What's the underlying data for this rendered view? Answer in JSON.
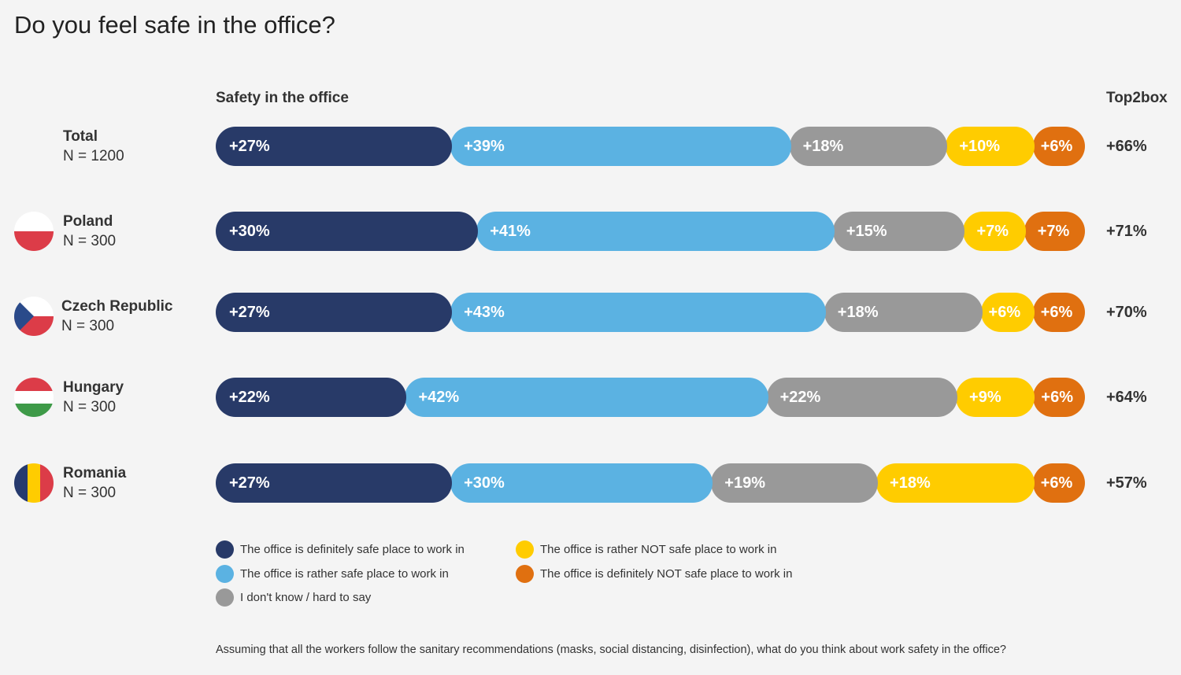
{
  "title": "Do you feel safe in the office?",
  "section_label": "Safety in the office",
  "top2box_label": "Top2box",
  "colors": {
    "definitely_safe": "#283a68",
    "rather_safe": "#5bb2e2",
    "dont_know": "#999999",
    "rather_not_safe": "#ffcc00",
    "definitely_not_safe": "#e07010"
  },
  "rows": [
    {
      "name": "Total",
      "n": "N = 1200",
      "flag": "none",
      "values": [
        "+27%",
        "+39%",
        "+18%",
        "+10%",
        "+6%"
      ],
      "top2box": "+66%"
    },
    {
      "name": "Poland",
      "n": "N = 300",
      "flag": "poland-flag-icon",
      "values": [
        "+30%",
        "+41%",
        "+15%",
        "+7%",
        "+7%"
      ],
      "top2box": "+71%"
    },
    {
      "name": "Czech Republic",
      "n": "N = 300",
      "flag": "czech-flag-icon",
      "values": [
        "+27%",
        "+43%",
        "+18%",
        "+6%",
        "+6%"
      ],
      "top2box": "+70%"
    },
    {
      "name": "Hungary",
      "n": "N = 300",
      "flag": "hungary-flag-icon",
      "values": [
        "+22%",
        "+42%",
        "+22%",
        "+9%",
        "+6%"
      ],
      "top2box": "+64%"
    },
    {
      "name": "Romania",
      "n": "N = 300",
      "flag": "romania-flag-icon",
      "values": [
        "+27%",
        "+30%",
        "+19%",
        "+18%",
        "+6%"
      ],
      "top2box": "+57%"
    }
  ],
  "legend": [
    "The office is definitely safe place to work in",
    "The office is rather safe place to work in",
    "I don't know / hard to say",
    "The office is rather NOT safe place to work in",
    "The office is definitely NOT safe place to work in"
  ],
  "footnote": "Assuming that all the workers follow the sanitary recommendations (masks, social distancing, disinfection), what do you think about work safety in the office?",
  "chart_data": {
    "type": "bar",
    "orientation": "horizontal",
    "stacked": true,
    "categories": [
      "Total",
      "Poland",
      "Czech Republic",
      "Hungary",
      "Romania"
    ],
    "series": [
      {
        "name": "The office is definitely safe place to work in",
        "values": [
          27,
          30,
          27,
          22,
          27
        ]
      },
      {
        "name": "The office is rather safe place to work in",
        "values": [
          39,
          41,
          43,
          42,
          30
        ]
      },
      {
        "name": "I don't know / hard to say",
        "values": [
          18,
          15,
          18,
          22,
          19
        ]
      },
      {
        "name": "The office is rather NOT safe place to work in",
        "values": [
          10,
          7,
          6,
          9,
          18
        ]
      },
      {
        "name": "The office is definitely NOT safe place to work in",
        "values": [
          6,
          7,
          6,
          6,
          6
        ]
      }
    ],
    "top2box": [
      66,
      71,
      70,
      64,
      57
    ],
    "title": "Safety in the office",
    "legend_position": "bottom"
  }
}
